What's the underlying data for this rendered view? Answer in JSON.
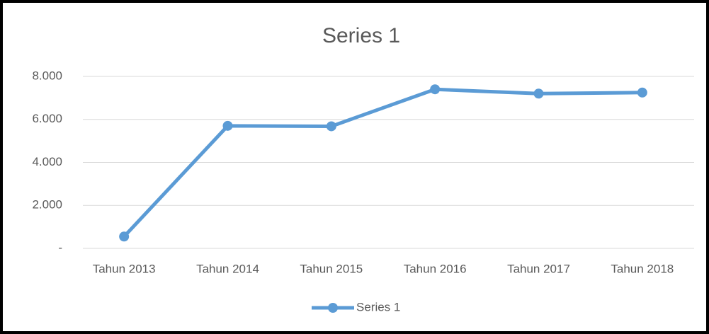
{
  "chart_data": {
    "type": "line",
    "title": "Series 1",
    "categories": [
      "Tahun 2013",
      "Tahun 2014",
      "Tahun 2015",
      "Tahun 2016",
      "Tahun 2017",
      "Tahun 2018"
    ],
    "series": [
      {
        "name": "Series 1",
        "color": "#5b9bd5",
        "values": [
          550,
          5700,
          5680,
          7400,
          7200,
          7250
        ]
      }
    ],
    "ylim": [
      0,
      8000
    ],
    "yticks": [
      {
        "value": 0,
        "label": "-"
      },
      {
        "value": 2000,
        "label": "2.000"
      },
      {
        "value": 4000,
        "label": "4.000"
      },
      {
        "value": 6000,
        "label": "6.000"
      },
      {
        "value": 8000,
        "label": "8.000"
      }
    ],
    "grid": true,
    "legend": "bottom"
  }
}
